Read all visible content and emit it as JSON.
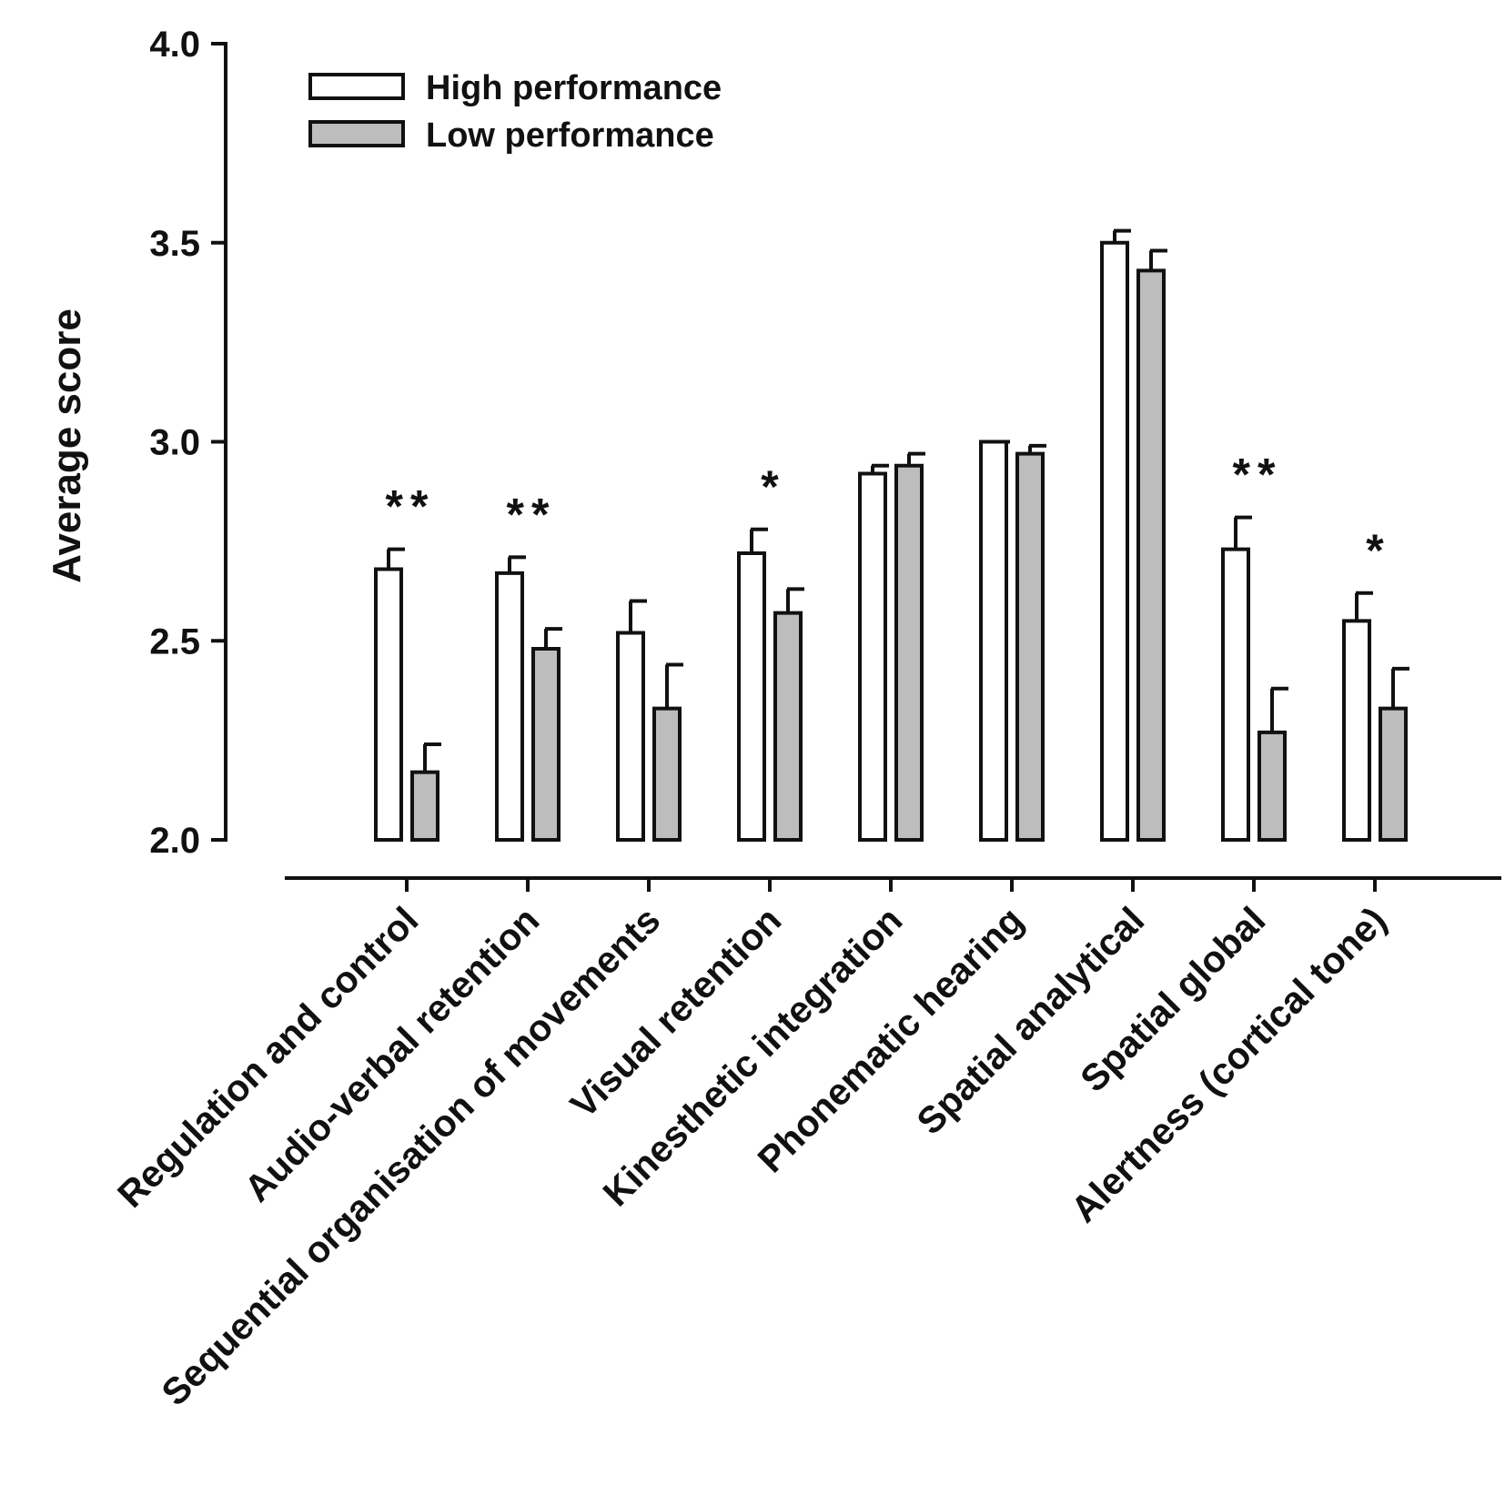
{
  "chart_data": {
    "type": "bar",
    "title": "",
    "ylabel": "Average score",
    "xlabel": "",
    "ylim": [
      2.0,
      4.0
    ],
    "yticks": [
      "2.0",
      "2.5",
      "3.0",
      "3.5",
      "4.0"
    ],
    "categories": [
      "Regulation and control",
      "Audio-verbal retention",
      "Sequential organisation of movements",
      "Visual retention",
      "Kinesthetic integration",
      "Phonematic hearing",
      "Spatial analytical",
      "Spatial global",
      "Alertness (cortical tone)"
    ],
    "series": [
      {
        "name": "High performance",
        "color": "#ffffff",
        "values": [
          2.68,
          2.67,
          2.52,
          2.72,
          2.92,
          3.0,
          3.5,
          2.73,
          2.55
        ],
        "errors": [
          0.05,
          0.04,
          0.08,
          0.06,
          0.02,
          0.0,
          0.03,
          0.08,
          0.07
        ]
      },
      {
        "name": "Low performance",
        "color": "#bdbdbd",
        "values": [
          2.17,
          2.48,
          2.33,
          2.57,
          2.94,
          2.97,
          3.43,
          2.27,
          2.33
        ],
        "errors": [
          0.07,
          0.05,
          0.11,
          0.06,
          0.03,
          0.02,
          0.05,
          0.11,
          0.1
        ]
      }
    ],
    "significance": [
      "**",
      "**",
      "",
      "*",
      "",
      "",
      "",
      "**",
      "*"
    ],
    "legend_position": "top-left",
    "grid": false
  }
}
